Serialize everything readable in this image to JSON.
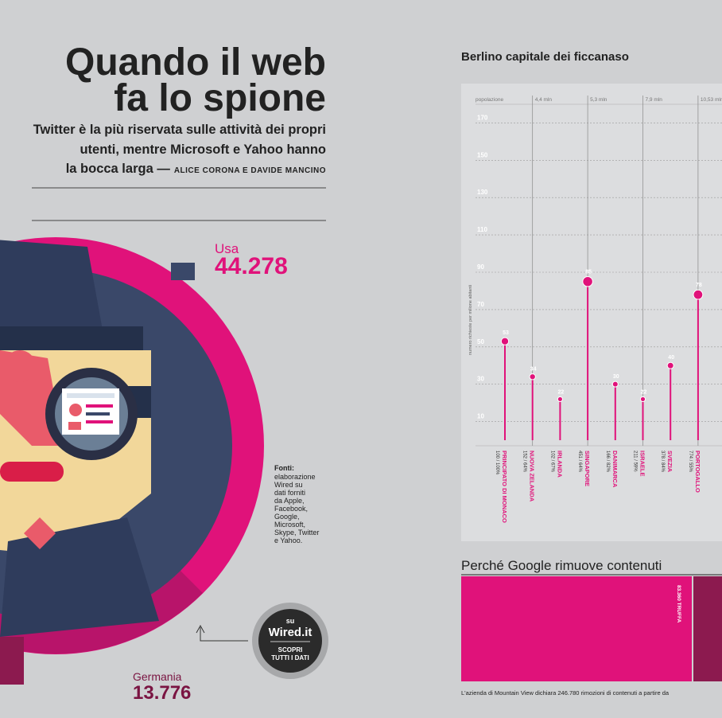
{
  "header": {
    "title_lines": [
      "Quando il web",
      "fa lo spione"
    ],
    "subtitle_lines": [
      "Twitter è la più riservata sulle attività dei propri",
      "utenti, mentre Microsoft e Yahoo hanno",
      "la bocca larga —"
    ],
    "byline": "ALICE CORONA E DAVIDE MANCINO"
  },
  "ring": {
    "usa_label": "Usa",
    "usa_value": "44.278",
    "germany_label": "Germania",
    "germany_value": "13.776"
  },
  "sources": {
    "heading": "Fonti:",
    "lines": [
      "elaborazione",
      "Wired su",
      "dati forniti",
      "da Apple,",
      "Facebook,",
      "Google,",
      "Microsoft,",
      "Skype, Twitter",
      "e Yahoo."
    ]
  },
  "badge": {
    "top": "su",
    "site": "Wired.it",
    "cta_lines": [
      "SCOPRI",
      "TUTTI I DATI"
    ]
  },
  "chart_data": {
    "type": "lollipop",
    "title": "Berlino capitale dei ficcanaso",
    "y_label": "numero richieste per milione abitanti",
    "population_label": "popolazione",
    "population": [
      null,
      "4,4 mln",
      null,
      "5,3 mln",
      null,
      "7,9 mln",
      null,
      "10,53 mln"
    ],
    "categories": [
      "PRINCIPATO DI MONACO",
      "NUOVA ZELANDA",
      "IRLANDA",
      "SINGAPORE",
      "DANIMARCA",
      "ISRAELE",
      "SVEZIA",
      "PORTOGALLO"
    ],
    "notes": [
      "100 / 100%",
      "152 / 64%",
      "102 / 67%",
      "451 / 64%",
      "166 / 82%",
      "211 / 59%",
      "378 / 84%",
      "774 / 55%"
    ],
    "values": [
      53,
      34,
      22,
      85,
      30,
      22,
      40,
      78
    ],
    "color": "#e0127a",
    "ylim": [
      0,
      180
    ],
    "yticks": [
      10,
      30,
      50,
      70,
      90,
      110,
      130,
      150,
      170
    ],
    "grid": true
  },
  "google": {
    "title": "Perché Google rimuove contenuti",
    "segment_label": "83.360 TRUFFA",
    "footer": "L'azienda di Mountain View dichiara 246.780 rimozioni di contenuti a partire da"
  }
}
